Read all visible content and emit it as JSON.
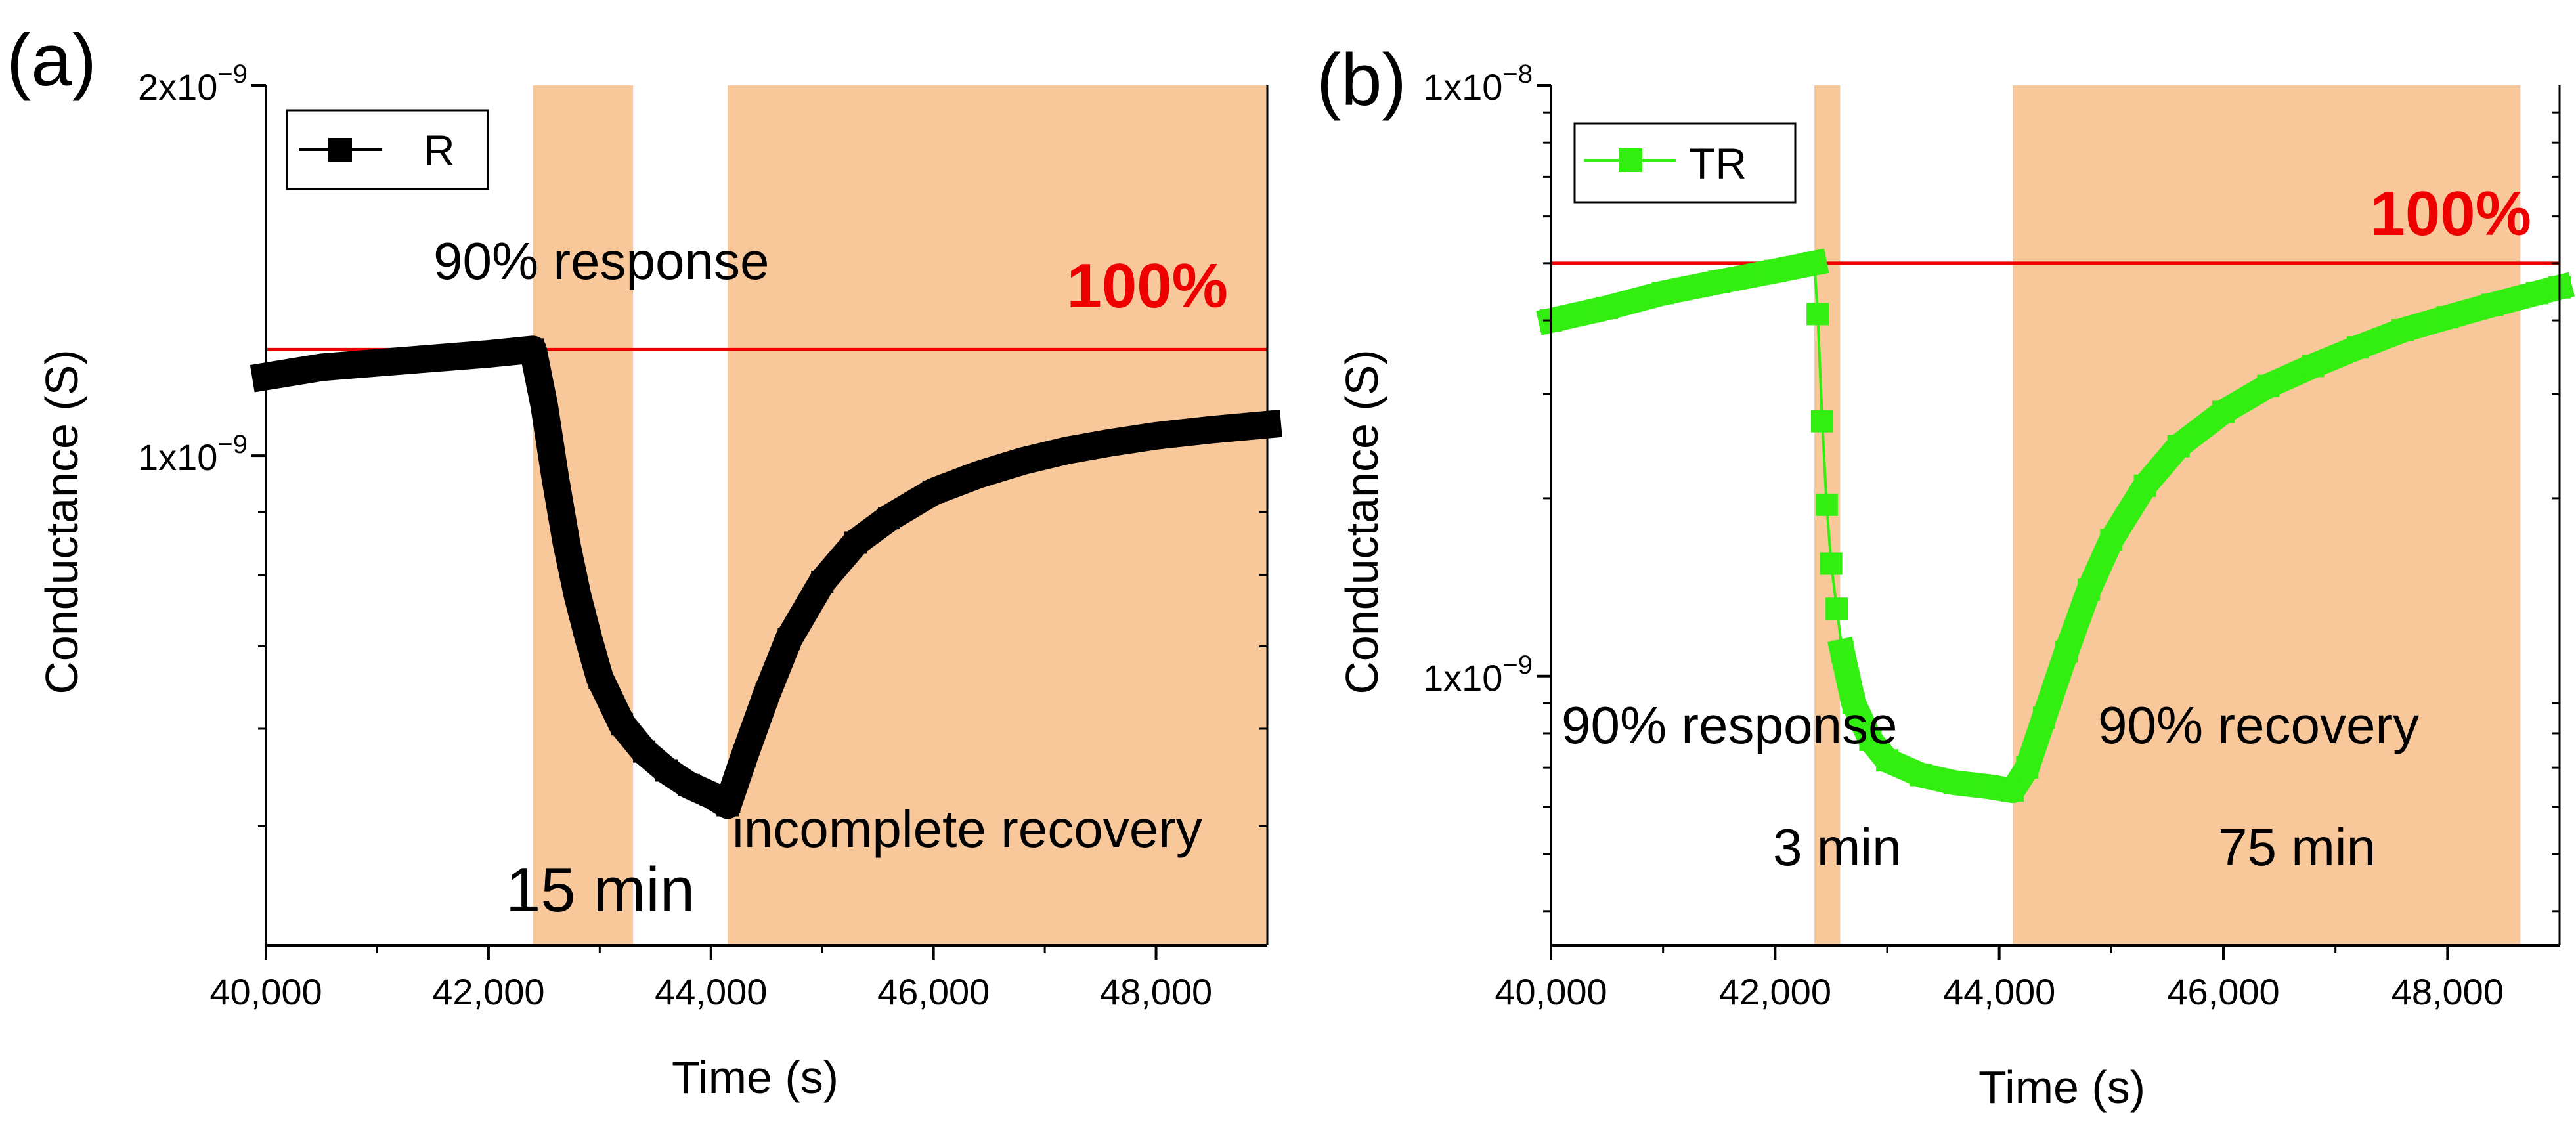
{
  "figure": {
    "panels": [
      {
        "label": "(a)",
        "legend": "R",
        "series_color": "#000000",
        "reference_label": "100%",
        "annotations": [
          "90% response",
          "15 min",
          "incomplete recovery"
        ]
      },
      {
        "label": "(b)",
        "legend": "TR",
        "series_color": "#33ee11",
        "reference_label": "100%",
        "annotations": [
          "90% response",
          "3 min",
          "90% recovery",
          "75 min"
        ]
      }
    ]
  },
  "chart_data": [
    {
      "type": "line",
      "title": "(a)",
      "xlabel": "Time (s)",
      "ylabel": "Conductance (S)",
      "xlim": [
        40000,
        49000
      ],
      "ylim": [
        4e-10,
        2e-09
      ],
      "yscale": "log",
      "xticks": [
        40000,
        42000,
        44000,
        46000,
        48000
      ],
      "xtick_labels": [
        "40,000",
        "42,000",
        "44,000",
        "46,000",
        "48,000"
      ],
      "yticks": [
        {
          "value": 2e-09,
          "mantissa": "2x10",
          "exp": "−9"
        },
        {
          "value": 1e-09,
          "mantissa": "1x10",
          "exp": "−9"
        }
      ],
      "legend": "upper-left",
      "reference_line": {
        "value": 1.22e-09,
        "label": "100%",
        "color": "#ee0000"
      },
      "shaded_regions": [
        {
          "x": [
            42400,
            43300
          ],
          "color": "#f8c89a"
        },
        {
          "x": [
            44150,
            49000
          ],
          "color": "#f8c89a"
        }
      ],
      "series": [
        {
          "name": "R",
          "color": "#000000",
          "marker": "square",
          "x": [
            40000,
            40500,
            41000,
            41500,
            42000,
            42400,
            42500,
            42600,
            42700,
            42800,
            42900,
            43000,
            43200,
            43400,
            43600,
            43800,
            44000,
            44150,
            44300,
            44500,
            44700,
            45000,
            45300,
            45600,
            46000,
            46400,
            46800,
            47200,
            47600,
            48000,
            48500,
            49000
          ],
          "values": [
            1.16e-09,
            1.18e-09,
            1.19e-09,
            1.2e-09,
            1.21e-09,
            1.22e-09,
            1.1e-09,
            9.6e-10,
            8.5e-10,
            7.7e-10,
            7.1e-10,
            6.6e-10,
            6.05e-10,
            5.75e-10,
            5.55e-10,
            5.4e-10,
            5.3e-10,
            5.2e-10,
            5.7e-10,
            6.4e-10,
            7.1e-10,
            7.9e-10,
            8.5e-10,
            8.9e-10,
            9.35e-10,
            9.65e-10,
            9.9e-10,
            1.01e-09,
            1.025e-09,
            1.038e-09,
            1.05e-09,
            1.06e-09
          ]
        }
      ],
      "annotations": [
        {
          "text": "90% response",
          "x": 42400
        },
        {
          "text": "15 min",
          "x": 42700
        },
        {
          "text": "incomplete recovery",
          "x": 44150
        }
      ]
    },
    {
      "type": "line",
      "title": "(b)",
      "xlabel": "Time (s)",
      "ylabel": "Conductance (S)",
      "xlim": [
        40000,
        49000
      ],
      "ylim": [
        3.5e-10,
        1e-08
      ],
      "yscale": "log",
      "xticks": [
        40000,
        42000,
        44000,
        46000,
        48000
      ],
      "xtick_labels": [
        "40,000",
        "42,000",
        "44,000",
        "46,000",
        "48,000"
      ],
      "yticks": [
        {
          "value": 1e-08,
          "mantissa": "1x10",
          "exp": "−8"
        },
        {
          "value": 1e-09,
          "mantissa": "1x10",
          "exp": "−9"
        }
      ],
      "legend": "upper-left",
      "reference_line": {
        "value": 5e-09,
        "label": "100%",
        "color": "#ee0000"
      },
      "shaded_regions": [
        {
          "x": [
            42350,
            42580
          ],
          "color": "#f8c89a"
        },
        {
          "x": [
            44120,
            48650
          ],
          "color": "#f8c89a"
        }
      ],
      "series": [
        {
          "name": "TR",
          "color": "#33ee11",
          "marker": "square",
          "x": [
            40000,
            40500,
            41000,
            41500,
            42000,
            42350,
            42380,
            42420,
            42460,
            42500,
            42550,
            42600,
            42700,
            42850,
            43000,
            43300,
            43600,
            43900,
            44120,
            44250,
            44400,
            44600,
            44800,
            45000,
            45300,
            45600,
            46000,
            46400,
            46800,
            47200,
            47600,
            48000,
            48400,
            48800,
            49000
          ],
          "values": [
            4e-09,
            4.2e-09,
            4.45e-09,
            4.65e-09,
            4.85e-09,
            5e-09,
            4.1e-09,
            2.7e-09,
            1.95e-09,
            1.55e-09,
            1.3e-09,
            1.1e-09,
            9e-10,
            7.8e-10,
            7.2e-10,
            6.8e-10,
            6.6e-10,
            6.5e-10,
            6.4e-10,
            7e-10,
            8.5e-10,
            1.1e-09,
            1.4e-09,
            1.7e-09,
            2.1e-09,
            2.45e-09,
            2.8e-09,
            3.1e-09,
            3.35e-09,
            3.6e-09,
            3.85e-09,
            4.05e-09,
            4.25e-09,
            4.45e-09,
            4.55e-09
          ]
        }
      ],
      "annotations": [
        {
          "text": "90% response",
          "x": 42350
        },
        {
          "text": "3 min",
          "x": 42460
        },
        {
          "text": "90% recovery",
          "x": 46400
        },
        {
          "text": "75 min",
          "x": 46400
        }
      ]
    }
  ]
}
